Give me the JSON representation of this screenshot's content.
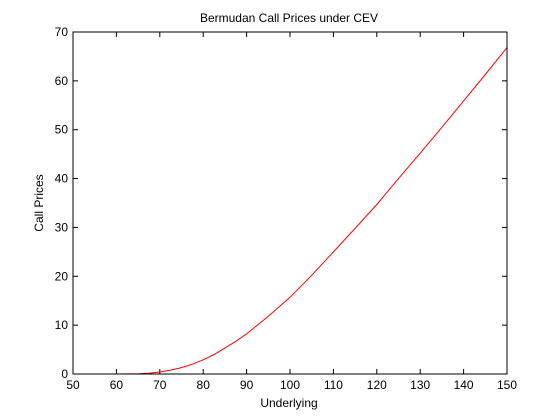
{
  "chart_data": {
    "type": "line",
    "title": "Bermudan Call Prices under CEV",
    "xlabel": "Underlying",
    "ylabel": "Call Prices",
    "xlim": [
      50,
      150
    ],
    "ylim": [
      0,
      70
    ],
    "xticks": [
      50,
      60,
      70,
      80,
      90,
      100,
      110,
      120,
      130,
      140,
      150
    ],
    "yticks": [
      0,
      10,
      20,
      30,
      40,
      50,
      60,
      70
    ],
    "grid": false,
    "series": [
      {
        "color": "#ff0000",
        "x": [
          50,
          55,
          60,
          65,
          67.5,
          70,
          72.5,
          75,
          77.5,
          80,
          82.5,
          85,
          87.5,
          90,
          95,
          100,
          105,
          110,
          115,
          120,
          125,
          130,
          135,
          140,
          145,
          150
        ],
        "y": [
          0,
          0,
          0,
          0.05,
          0.15,
          0.4,
          0.8,
          1.3,
          2.0,
          2.9,
          4.0,
          5.3,
          6.7,
          8.2,
          11.8,
          15.7,
          20.2,
          25.0,
          29.8,
          34.7,
          40.0,
          45.2,
          50.5,
          55.9,
          61.3,
          66.8
        ]
      }
    ]
  }
}
